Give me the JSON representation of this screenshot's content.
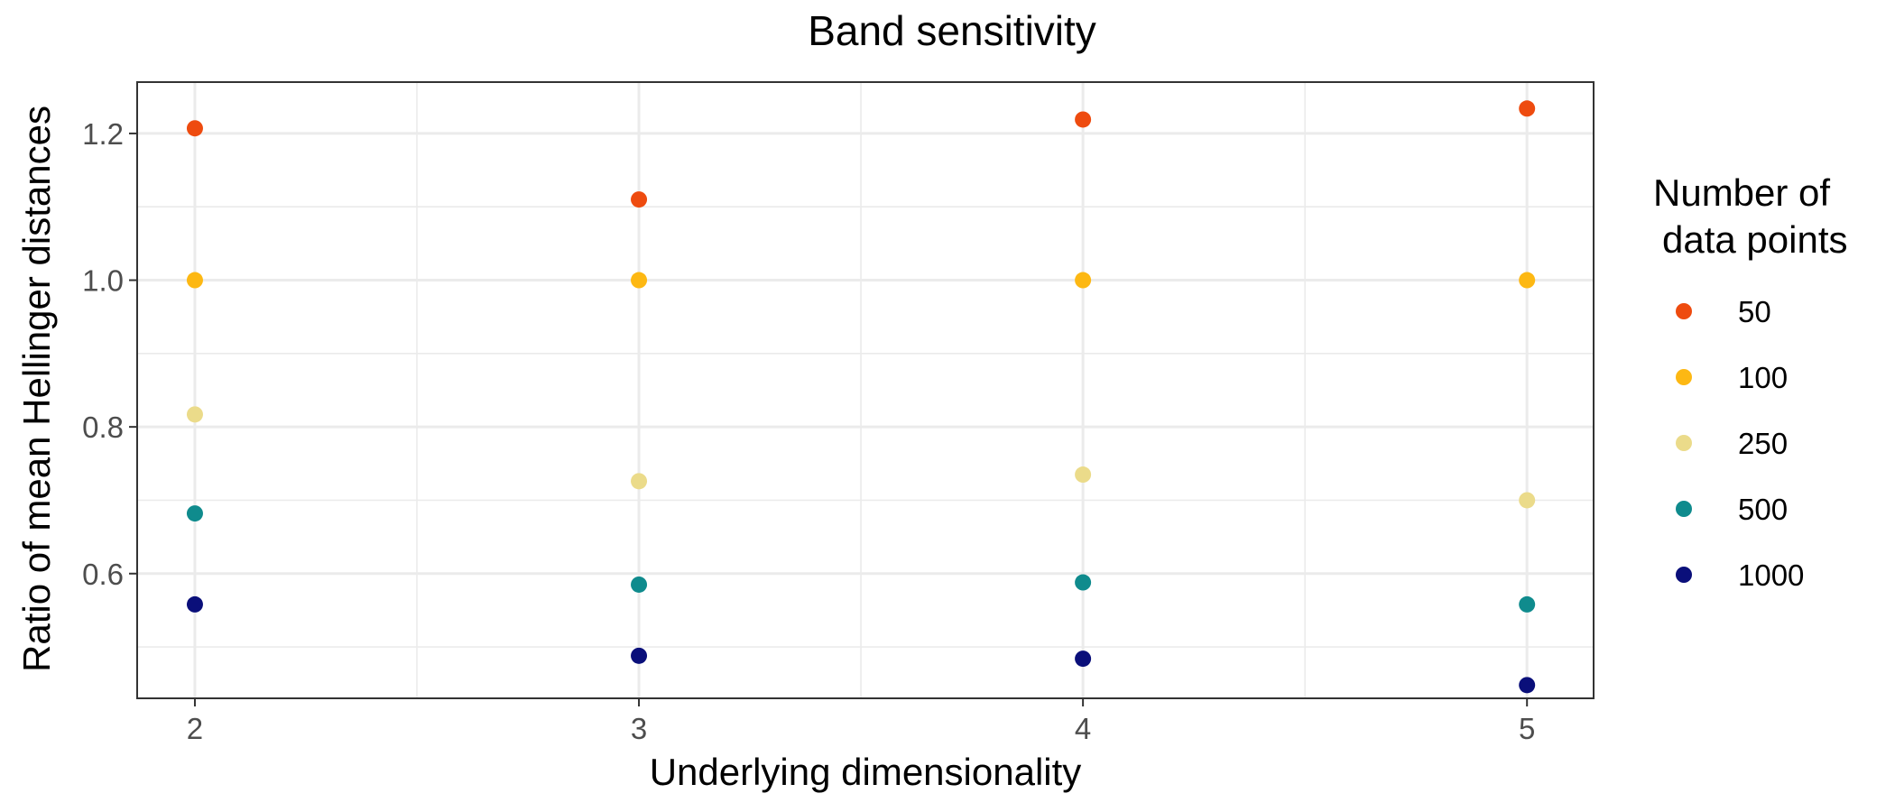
{
  "chart_data": {
    "type": "scatter",
    "title": "Band sensitivity",
    "xlabel": "Underlying dimensionality",
    "ylabel": "Ratio of mean Hellinger distances",
    "x": [
      2,
      3,
      4,
      5
    ],
    "xlim": [
      1.87,
      5.15
    ],
    "ylim": [
      0.43,
      1.27
    ],
    "xticks": [
      2,
      3,
      4,
      5
    ],
    "xtick_labels": [
      "2",
      "3",
      "4",
      "5"
    ],
    "yticks": [
      0.6,
      0.8,
      1.0,
      1.2
    ],
    "ytick_labels": [
      "0.6",
      "0.8",
      "1.0",
      "1.2"
    ],
    "grid": true,
    "legend": {
      "title_lines": [
        "Number of",
        "data points"
      ],
      "placement": "right"
    },
    "series": [
      {
        "name": "50",
        "color": "#EE4B0F",
        "values": [
          1.207,
          1.11,
          1.219,
          1.234
        ]
      },
      {
        "name": "100",
        "color": "#FDB813",
        "values": [
          1.0,
          1.0,
          1.0,
          1.0
        ]
      },
      {
        "name": "250",
        "color": "#EBDB8A",
        "values": [
          0.817,
          0.726,
          0.735,
          0.7
        ]
      },
      {
        "name": "500",
        "color": "#0F8B8D",
        "values": [
          0.682,
          0.585,
          0.588,
          0.558
        ]
      },
      {
        "name": "1000",
        "color": "#0A0F7A",
        "values": [
          0.558,
          0.488,
          0.484,
          0.448
        ]
      }
    ]
  }
}
